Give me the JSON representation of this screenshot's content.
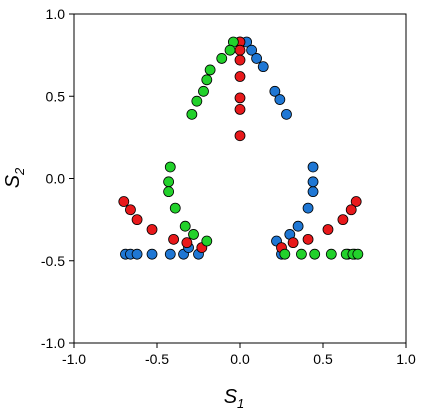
{
  "chart_data": {
    "type": "scatter",
    "title": "",
    "xlabel": {
      "base": "S",
      "sub": "1"
    },
    "ylabel": {
      "base": "S",
      "sub": "2"
    },
    "xlim": [
      -1.0,
      1.0
    ],
    "ylim": [
      -1.0,
      1.0
    ],
    "xticks": [
      -1.0,
      -0.5,
      0.0,
      0.5,
      1.0
    ],
    "yticks": [
      -1.0,
      -0.5,
      0.0,
      0.5,
      1.0
    ],
    "xtick_labels": [
      "-1.0",
      "-0.5",
      "0.0",
      "0.5",
      "1.0"
    ],
    "ytick_labels": [
      "-1.0",
      "-0.5",
      "0.0",
      "0.5",
      "1.0"
    ],
    "grid": false,
    "legend": "none",
    "series": [
      {
        "color": "#1f77d4",
        "points": [
          [
            -0.69,
            -0.46
          ],
          [
            -0.66,
            -0.46
          ],
          [
            -0.62,
            -0.46
          ],
          [
            -0.53,
            -0.46
          ],
          [
            -0.42,
            -0.46
          ],
          [
            -0.34,
            -0.46
          ],
          [
            -0.25,
            -0.46
          ],
          [
            -0.31,
            -0.42
          ],
          [
            0.69,
            -0.46
          ],
          [
            0.65,
            -0.46
          ],
          [
            0.25,
            -0.46
          ],
          [
            0.22,
            -0.38
          ],
          [
            0.3,
            -0.34
          ],
          [
            0.35,
            -0.29
          ],
          [
            0.41,
            -0.18
          ],
          [
            0.44,
            -0.08
          ],
          [
            0.44,
            -0.02
          ],
          [
            0.44,
            0.07
          ],
          [
            0.0,
            0.83
          ],
          [
            0.04,
            0.83
          ],
          [
            0.07,
            0.78
          ],
          [
            0.1,
            0.73
          ],
          [
            0.14,
            0.68
          ],
          [
            0.21,
            0.53
          ],
          [
            0.24,
            0.48
          ],
          [
            0.28,
            0.39
          ]
        ]
      },
      {
        "color": "#e8191b",
        "points": [
          [
            0.0,
            0.83
          ],
          [
            0.0,
            0.78
          ],
          [
            0.0,
            0.72
          ],
          [
            0.0,
            0.62
          ],
          [
            0.0,
            0.49
          ],
          [
            0.0,
            0.42
          ],
          [
            0.0,
            0.26
          ],
          [
            -0.7,
            -0.14
          ],
          [
            -0.66,
            -0.19
          ],
          [
            -0.62,
            -0.25
          ],
          [
            -0.53,
            -0.31
          ],
          [
            -0.4,
            -0.37
          ],
          [
            -0.32,
            -0.39
          ],
          [
            -0.23,
            -0.42
          ],
          [
            0.7,
            -0.14
          ],
          [
            0.67,
            -0.19
          ],
          [
            0.62,
            -0.25
          ],
          [
            0.53,
            -0.31
          ],
          [
            0.41,
            -0.37
          ],
          [
            0.32,
            -0.39
          ],
          [
            0.25,
            -0.42
          ]
        ]
      },
      {
        "color": "#22d12b",
        "points": [
          [
            -0.04,
            0.83
          ],
          [
            -0.06,
            0.78
          ],
          [
            -0.11,
            0.73
          ],
          [
            -0.18,
            0.66
          ],
          [
            -0.2,
            0.6
          ],
          [
            -0.22,
            0.53
          ],
          [
            -0.26,
            0.47
          ],
          [
            -0.29,
            0.39
          ],
          [
            -0.42,
            0.07
          ],
          [
            -0.43,
            -0.02
          ],
          [
            -0.43,
            -0.08
          ],
          [
            -0.39,
            -0.18
          ],
          [
            -0.33,
            -0.29
          ],
          [
            -0.28,
            -0.34
          ],
          [
            -0.2,
            -0.38
          ],
          [
            0.27,
            -0.46
          ],
          [
            0.37,
            -0.46
          ],
          [
            0.45,
            -0.46
          ],
          [
            0.55,
            -0.46
          ],
          [
            0.64,
            -0.46
          ],
          [
            0.68,
            -0.46
          ],
          [
            0.71,
            -0.46
          ]
        ]
      }
    ]
  }
}
